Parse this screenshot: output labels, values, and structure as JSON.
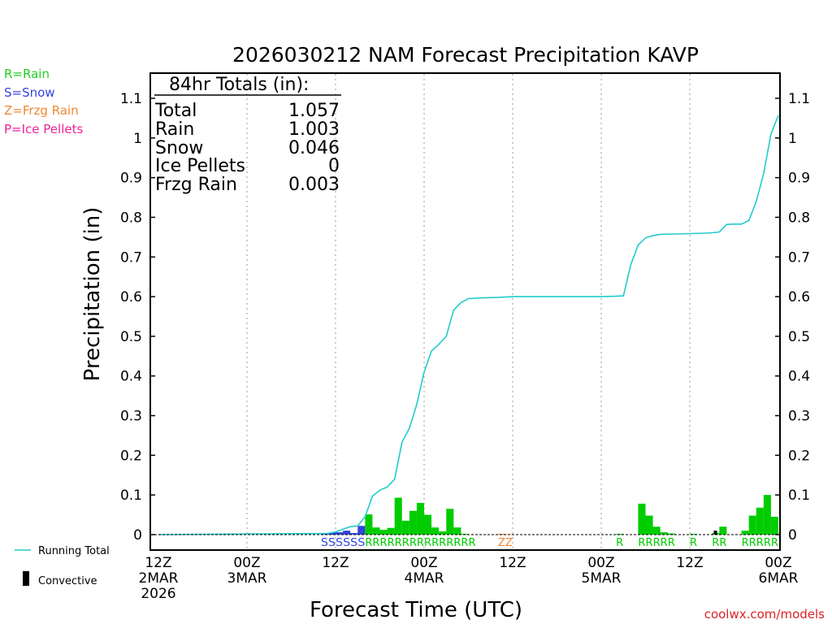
{
  "chart_data": {
    "type": "bar",
    "title": "2026030212 NAM Forecast Precipitation KAVP",
    "xlabel": "Forecast Time (UTC)",
    "ylabel": "Precipitation (in)",
    "ylim": [
      0,
      1.15
    ],
    "y_ticks": [
      "0",
      "0.1",
      "0.2",
      "0.3",
      "0.4",
      "0.5",
      "0.6",
      "0.7",
      "0.8",
      "0.9",
      "1",
      "1.1"
    ],
    "xlim_hours": [
      0,
      84
    ],
    "x_ticks": [
      {
        "hour": 0,
        "lines": [
          "12Z",
          "2MAR",
          "2026"
        ]
      },
      {
        "hour": 12,
        "lines": [
          "00Z",
          "3MAR"
        ]
      },
      {
        "hour": 24,
        "lines": [
          "12Z"
        ]
      },
      {
        "hour": 36,
        "lines": [
          "00Z",
          "4MAR"
        ]
      },
      {
        "hour": 48,
        "lines": [
          "12Z"
        ]
      },
      {
        "hour": 60,
        "lines": [
          "00Z",
          "5MAR"
        ]
      },
      {
        "hour": 72,
        "lines": [
          "12Z"
        ]
      },
      {
        "hour": 84,
        "lines": [
          "00Z",
          "6MAR"
        ]
      }
    ],
    "legend_types": [
      {
        "label": "R=Rain",
        "color": "#22cc22"
      },
      {
        "label": "S=Snow",
        "color": "#3344dd"
      },
      {
        "label": "Z=Frzg Rain",
        "color": "#ee8833"
      },
      {
        "label": "P=Ice Pellets",
        "color": "#ee2299"
      }
    ],
    "legend_series": {
      "running_total": "Running Total",
      "convective": "Convective"
    },
    "totals_box": {
      "header": "84hr Totals (in):",
      "rows": [
        {
          "label": "Total",
          "value": "1.057"
        },
        {
          "label": "Rain",
          "value": "1.003"
        },
        {
          "label": "Snow",
          "value": "0.046"
        },
        {
          "label": "Ice Pellets",
          "value": "0"
        },
        {
          "label": "Frzg Rain",
          "value": "0.003"
        }
      ]
    },
    "hourly_bars": [
      {
        "hour": 23,
        "value": 0.003,
        "type": "S"
      },
      {
        "hour": 24,
        "value": 0.005,
        "type": "S"
      },
      {
        "hour": 25,
        "value": 0.006,
        "type": "S"
      },
      {
        "hour": 26,
        "value": 0.01,
        "type": "S"
      },
      {
        "hour": 27,
        "value": 0.004,
        "type": "S"
      },
      {
        "hour": 28,
        "value": 0.022,
        "type": "S"
      },
      {
        "hour": 29,
        "value": 0.051,
        "type": "R"
      },
      {
        "hour": 30,
        "value": 0.018,
        "type": "R"
      },
      {
        "hour": 31,
        "value": 0.012,
        "type": "R"
      },
      {
        "hour": 32,
        "value": 0.017,
        "type": "R"
      },
      {
        "hour": 33,
        "value": 0.093,
        "type": "R"
      },
      {
        "hour": 34,
        "value": 0.035,
        "type": "R"
      },
      {
        "hour": 35,
        "value": 0.06,
        "type": "R"
      },
      {
        "hour": 36,
        "value": 0.08,
        "type": "R"
      },
      {
        "hour": 37,
        "value": 0.05,
        "type": "R"
      },
      {
        "hour": 38,
        "value": 0.018,
        "type": "R"
      },
      {
        "hour": 39,
        "value": 0.008,
        "type": "R"
      },
      {
        "hour": 40,
        "value": 0.065,
        "type": "R"
      },
      {
        "hour": 41,
        "value": 0.018,
        "type": "R"
      },
      {
        "hour": 42,
        "value": 0.002,
        "type": "R"
      },
      {
        "hour": 47,
        "value": 0.002,
        "type": "Z"
      },
      {
        "hour": 48,
        "value": 0.001,
        "type": "Z"
      },
      {
        "hour": 63,
        "value": 0.002,
        "type": "R"
      },
      {
        "hour": 66,
        "value": 0.078,
        "type": "R"
      },
      {
        "hour": 67,
        "value": 0.048,
        "type": "R"
      },
      {
        "hour": 68,
        "value": 0.02,
        "type": "R"
      },
      {
        "hour": 69,
        "value": 0.006,
        "type": "R"
      },
      {
        "hour": 70,
        "value": 0.003,
        "type": "R"
      },
      {
        "hour": 73,
        "value": 0.002,
        "type": "R"
      },
      {
        "hour": 76,
        "value": 0.004,
        "type": "R"
      },
      {
        "hour": 77,
        "value": 0.02,
        "type": "R"
      },
      {
        "hour": 80,
        "value": 0.01,
        "type": "R"
      },
      {
        "hour": 81,
        "value": 0.048,
        "type": "R"
      },
      {
        "hour": 82,
        "value": 0.068,
        "type": "R"
      },
      {
        "hour": 83,
        "value": 0.1,
        "type": "R"
      },
      {
        "hour": 84,
        "value": 0.045,
        "type": "R"
      }
    ],
    "convective_bars": [
      {
        "hour": 76,
        "value": 0.01
      }
    ],
    "running_total": {
      "x": [
        0,
        23,
        24,
        25,
        26,
        27,
        28,
        29,
        30,
        31,
        32,
        33,
        34,
        35,
        36,
        37,
        38,
        39,
        40,
        41,
        42,
        44,
        46,
        48,
        54,
        60,
        62,
        63,
        64,
        65,
        66,
        67,
        68,
        70,
        72,
        74,
        75,
        76,
        77,
        78,
        79,
        80,
        81,
        82,
        83,
        84
      ],
      "y": [
        0,
        0.003,
        0.007,
        0.014,
        0.02,
        0.022,
        0.045,
        0.097,
        0.112,
        0.12,
        0.14,
        0.233,
        0.268,
        0.328,
        0.41,
        0.463,
        0.48,
        0.5,
        0.566,
        0.585,
        0.595,
        0.597,
        0.598,
        0.6,
        0.6,
        0.6,
        0.601,
        0.602,
        0.68,
        0.73,
        0.748,
        0.754,
        0.757,
        0.758,
        0.759,
        0.76,
        0.761,
        0.763,
        0.782,
        0.783,
        0.783,
        0.792,
        0.84,
        0.91,
        1.01,
        1.057
      ]
    },
    "type_strip": [
      {
        "text": "SSSSSS",
        "type": "S",
        "start_hour": 23
      },
      {
        "text": "RRRRRRRRRRRRRRR",
        "type": "R",
        "start_hour": 29
      },
      {
        "text": "ZZ",
        "type": "Z",
        "start_hour": 47
      },
      {
        "text": "R",
        "type": "R",
        "start_hour": 63
      },
      {
        "text": "RRRRR",
        "type": "R",
        "start_hour": 66
      },
      {
        "text": "R",
        "type": "R",
        "start_hour": 73
      },
      {
        "text": "RR",
        "type": "R",
        "start_hour": 76
      },
      {
        "text": "RRRRR",
        "type": "R",
        "start_hour": 80
      }
    ],
    "colors": {
      "running_total": "#22cccc",
      "convective": "#000000",
      "rain": "#00cc00",
      "snow": "#3344dd",
      "frzg": "#ee8833",
      "grid": "#999999"
    },
    "credit": "coolwx.com/models"
  }
}
